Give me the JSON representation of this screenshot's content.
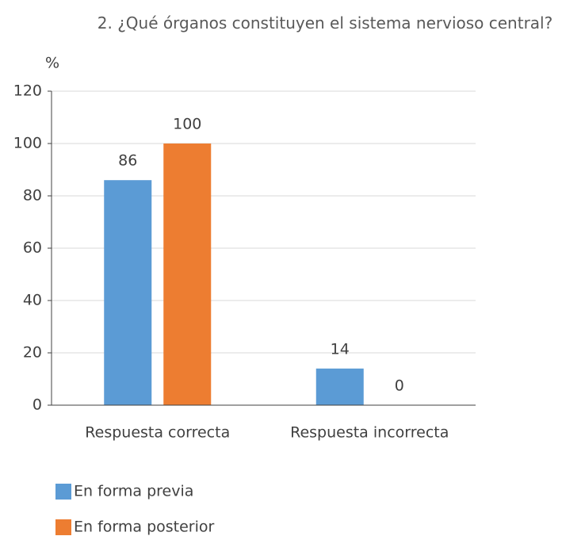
{
  "chart_data": {
    "type": "bar",
    "title": "2. ¿Qué órganos constituyen el sistema nervioso central?",
    "y_label": "%",
    "categories": [
      "Respuesta correcta",
      "Respuesta incorrecta"
    ],
    "series": [
      {
        "name": "En forma previa",
        "color": "#5b9bd5",
        "values": [
          86,
          14
        ]
      },
      {
        "name": "En forma posterior",
        "color": "#ed7d31",
        "values": [
          100,
          0
        ]
      }
    ],
    "ylim": [
      0,
      120
    ],
    "yticks": [
      0,
      20,
      40,
      60,
      80,
      100,
      120
    ],
    "grid": true
  }
}
